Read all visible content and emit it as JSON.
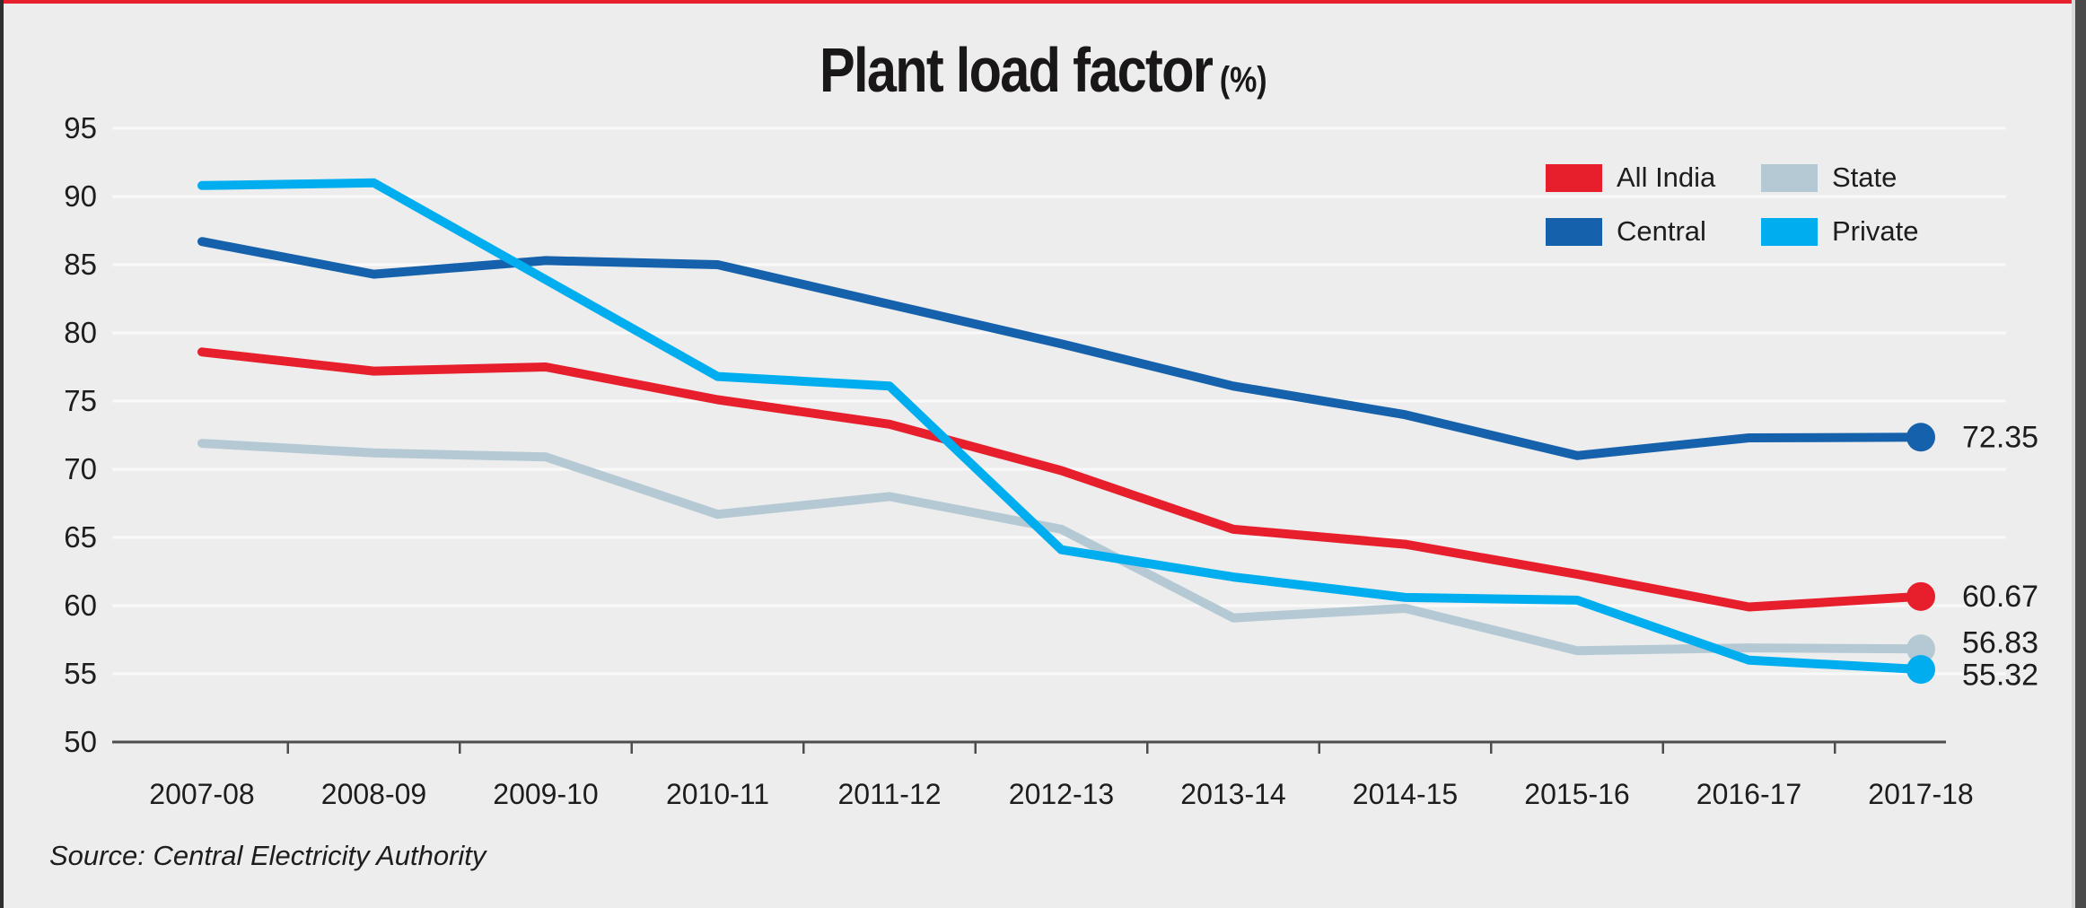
{
  "page": {
    "title": "Plant load factor",
    "title_unit": "(%)",
    "source": "Source: Central Electricity Authority"
  },
  "legend": {
    "items": [
      {
        "label": "All India",
        "color": "#e71f2c"
      },
      {
        "label": "State",
        "color": "#b4c9d4"
      },
      {
        "label": "Central",
        "color": "#1561ab"
      },
      {
        "label": "Private",
        "color": "#00aeef"
      }
    ]
  },
  "chart_data": {
    "type": "line",
    "title": "Plant load factor (%)",
    "categories": [
      "2007-08",
      "2008-09",
      "2009-10",
      "2010-11",
      "2011-12",
      "2012-13",
      "2013-14",
      "2014-15",
      "2015-16",
      "2016-17",
      "2017-18"
    ],
    "series": [
      {
        "name": "All India",
        "color": "#e71f2c",
        "values": [
          78.6,
          77.2,
          77.5,
          75.1,
          73.3,
          69.9,
          65.6,
          64.5,
          62.3,
          59.9,
          60.67
        ],
        "end_label": "60.67"
      },
      {
        "name": "Central",
        "color": "#1561ab",
        "values": [
          86.7,
          84.3,
          85.3,
          85.0,
          82.1,
          79.2,
          76.1,
          74.0,
          71.0,
          72.3,
          72.35
        ],
        "end_label": "72.35"
      },
      {
        "name": "State",
        "color": "#b4c9d4",
        "values": [
          71.9,
          71.2,
          70.9,
          66.7,
          68.0,
          65.6,
          59.1,
          59.8,
          56.7,
          56.9,
          56.83
        ],
        "end_label": "56.83"
      },
      {
        "name": "Private",
        "color": "#00aeef",
        "values": [
          90.8,
          91.0,
          83.9,
          76.8,
          76.1,
          64.1,
          62.1,
          60.6,
          60.4,
          56.0,
          55.32
        ],
        "end_label": "55.32"
      }
    ],
    "ylim": [
      50,
      95
    ],
    "ytick_step": 5,
    "grid": true,
    "legend_position": "top-right",
    "xlabel": "",
    "ylabel": "",
    "grid_color": "#f9f9f9",
    "axis_color": "#4d4d4d",
    "text_color": "#1d1d1f",
    "background_color": "#ededed"
  }
}
